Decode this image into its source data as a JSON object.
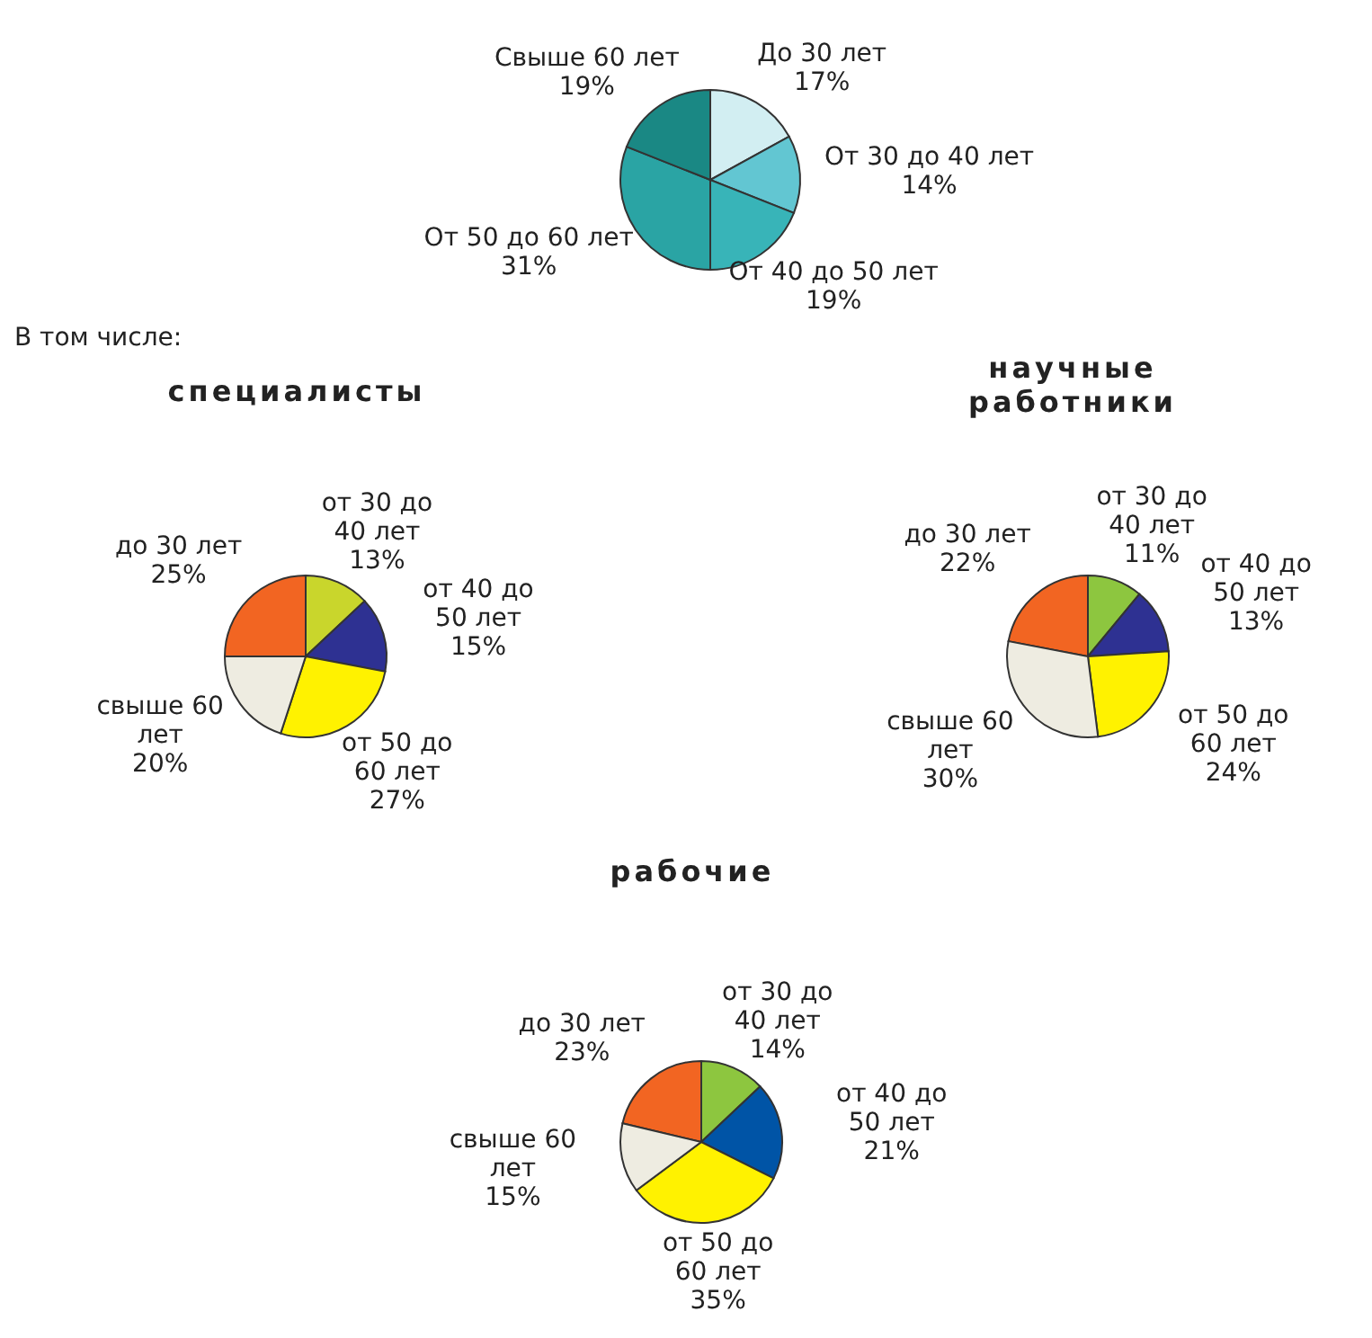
{
  "chart_data": [
    {
      "type": "pie",
      "categories": [
        "До 30 лет",
        "От 30 до 40 лет",
        "От 40 до 50 лет",
        "От 50 до 60 лет",
        "Свыше 60 лет"
      ],
      "values": [
        17,
        14,
        19,
        31,
        19
      ],
      "value_labels": [
        "17%",
        "14%",
        "19%",
        "31%",
        "19%"
      ],
      "colors": [
        "#d2eef2",
        "#62c6d2",
        "#38b4b8",
        "#2aa4a4",
        "#1a8884"
      ],
      "annotations": [
        "В том числе:"
      ]
    },
    {
      "type": "pie",
      "title": "специалисты",
      "categories": [
        "до 30 лет",
        "от 30 до 40 лет",
        "от 40 до 50 лет",
        "от 50 до 60 лет",
        "свыше 60 лет"
      ],
      "values": [
        25,
        13,
        15,
        27,
        20
      ],
      "value_labels": [
        "25%",
        "13%",
        "15%",
        "27%",
        "20%"
      ],
      "colors": [
        "#f26522",
        "#c9d62c",
        "#2e3192",
        "#fff200",
        "#eeece1"
      ]
    },
    {
      "type": "pie",
      "title": "научные работники",
      "categories": [
        "до 30 лет",
        "от 30 до 40 лет",
        "от 40 до 50 лет",
        "от 50 до 60 лет",
        "свыше 60 лет"
      ],
      "values": [
        22,
        11,
        13,
        24,
        30
      ],
      "value_labels": [
        "22%",
        "11%",
        "13%",
        "24%",
        "30%"
      ],
      "colors": [
        "#f26522",
        "#8dc63f",
        "#2e3192",
        "#fff200",
        "#eeece1"
      ]
    },
    {
      "type": "pie",
      "title": "рабочие",
      "categories": [
        "до 30 лет",
        "от 30 до 40 лет",
        "от 40 до 50 лет",
        "от 50 до 60 лет",
        "свыше 60 лет"
      ],
      "values": [
        23,
        14,
        21,
        35,
        15
      ],
      "value_labels": [
        "23%",
        "14%",
        "21%",
        "35%",
        "15%"
      ],
      "colors": [
        "#f26522",
        "#8dc63f",
        "#0054a6",
        "#fff200",
        "#eeece1"
      ]
    }
  ]
}
